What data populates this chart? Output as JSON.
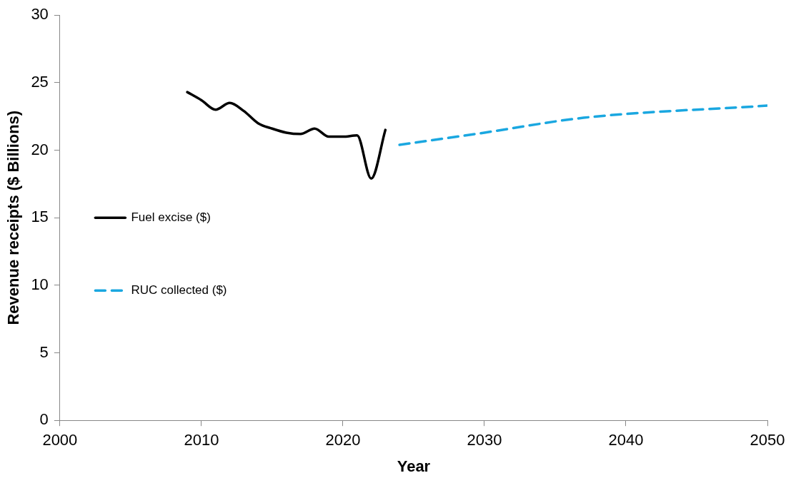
{
  "chart_data": {
    "type": "line",
    "xlabel": "Year",
    "ylabel": "Revenue receipts ($ Billions)",
    "xlim": [
      2000,
      2050
    ],
    "xticks": [
      2000,
      2010,
      2020,
      2030,
      2040,
      2050
    ],
    "ylim": [
      0,
      30
    ],
    "yticks": [
      0,
      5,
      10,
      15,
      20,
      25,
      30
    ],
    "grid": false,
    "legend": "left",
    "marker": "none",
    "series": [
      {
        "name": "Fuel excise ($)",
        "color": "#000000",
        "line_style": "solid",
        "x": [
          2009,
          2010,
          2011,
          2012,
          2013,
          2014,
          2015,
          2016,
          2017,
          2018,
          2019,
          2020,
          2021,
          2022,
          2023
        ],
        "values": [
          24.3,
          23.7,
          23.0,
          23.5,
          22.9,
          22.0,
          21.6,
          21.3,
          21.2,
          21.6,
          21.0,
          21.0,
          21.1,
          17.9,
          21.5
        ]
      },
      {
        "name": "RUC collected ($)",
        "color": "#1aa7e0",
        "line_style": "dashed",
        "x": [
          2024,
          2030,
          2037,
          2050
        ],
        "values": [
          20.4,
          21.3,
          22.4,
          23.3
        ]
      }
    ]
  }
}
